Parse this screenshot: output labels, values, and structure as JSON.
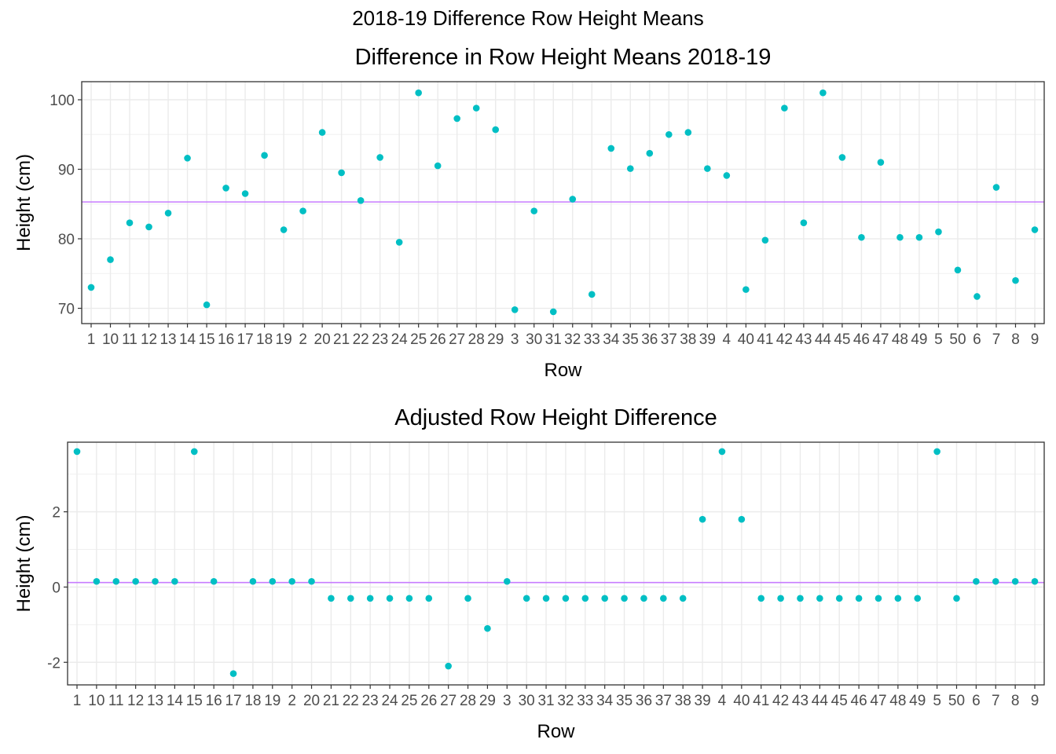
{
  "figure": {
    "title": "2018-19 Difference Row Height Means"
  },
  "chart_data": [
    {
      "type": "scatter",
      "title": "Difference in Row Height Means 2018-19",
      "xlabel": "Row",
      "ylabel": "Height (cm)",
      "grid": true,
      "point_color": "#00BFC4",
      "hline": 85.3,
      "hline_color": "#C77CFF",
      "ylim": [
        67.8,
        102.6
      ],
      "yticks": [
        70,
        80,
        90,
        100
      ],
      "categories": [
        "1",
        "10",
        "11",
        "12",
        "13",
        "14",
        "15",
        "16",
        "17",
        "18",
        "19",
        "2",
        "20",
        "21",
        "22",
        "23",
        "24",
        "25",
        "26",
        "27",
        "28",
        "29",
        "3",
        "30",
        "31",
        "32",
        "33",
        "34",
        "35",
        "36",
        "37",
        "38",
        "39",
        "4",
        "40",
        "41",
        "42",
        "43",
        "44",
        "45",
        "46",
        "47",
        "48",
        "49",
        "5",
        "50",
        "6",
        "7",
        "8",
        "9"
      ],
      "values": [
        73.0,
        77.0,
        82.3,
        81.7,
        83.7,
        91.6,
        70.5,
        87.3,
        86.5,
        92.0,
        81.3,
        84.0,
        95.3,
        89.5,
        85.5,
        91.7,
        79.5,
        101.0,
        90.5,
        97.3,
        98.8,
        95.7,
        69.8,
        84.0,
        69.5,
        85.7,
        72.0,
        93.0,
        90.1,
        92.3,
        95.0,
        95.3,
        90.1,
        89.1,
        72.7,
        79.8,
        98.8,
        82.3,
        101.0,
        91.7,
        80.2,
        91.0,
        80.2,
        80.2,
        81.0,
        75.5,
        71.7,
        87.4,
        74.0,
        81.3
      ]
    },
    {
      "type": "scatter",
      "title": "Adjusted Row Height Difference",
      "xlabel": "Row",
      "ylabel": "Height (cm)",
      "grid": true,
      "point_color": "#00BFC4",
      "hline": 0.12,
      "hline_color": "#C77CFF",
      "ylim": [
        -2.6,
        3.85
      ],
      "yticks": [
        -2,
        0,
        2
      ],
      "categories": [
        "1",
        "10",
        "11",
        "12",
        "13",
        "14",
        "15",
        "16",
        "17",
        "18",
        "19",
        "2",
        "20",
        "21",
        "22",
        "23",
        "24",
        "25",
        "26",
        "27",
        "28",
        "29",
        "3",
        "30",
        "31",
        "32",
        "33",
        "34",
        "35",
        "36",
        "37",
        "38",
        "39",
        "4",
        "40",
        "41",
        "42",
        "43",
        "44",
        "45",
        "46",
        "47",
        "48",
        "49",
        "5",
        "50",
        "6",
        "7",
        "8",
        "9"
      ],
      "values": [
        3.6,
        0.15,
        0.15,
        0.15,
        0.15,
        0.15,
        3.6,
        0.15,
        -2.3,
        0.15,
        0.15,
        0.15,
        0.15,
        -0.3,
        -0.3,
        -0.3,
        -0.3,
        -0.3,
        -0.3,
        -2.1,
        -0.3,
        -1.1,
        0.15,
        -0.3,
        -0.3,
        -0.3,
        -0.3,
        -0.3,
        -0.3,
        -0.3,
        -0.3,
        -0.3,
        1.8,
        3.6,
        1.8,
        -0.3,
        -0.3,
        -0.3,
        -0.3,
        -0.3,
        -0.3,
        -0.3,
        -0.3,
        -0.3,
        3.6,
        -0.3,
        0.15,
        0.15,
        0.15,
        0.15
      ]
    }
  ]
}
